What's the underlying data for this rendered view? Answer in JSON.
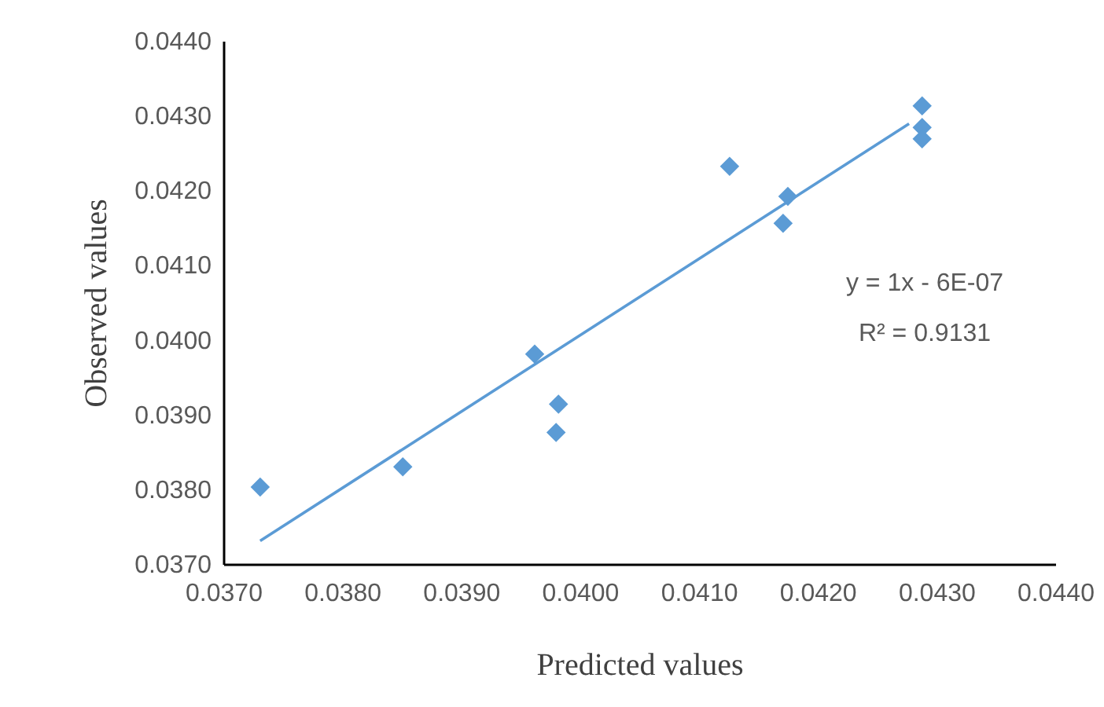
{
  "chart_data": {
    "type": "scatter",
    "xlabel": "Predicted values",
    "ylabel": "Observed values",
    "xlim": [
      0.037,
      0.044
    ],
    "xticks": [
      {
        "value": 0.037,
        "label": "0.0370"
      },
      {
        "value": 0.038,
        "label": "0.0380"
      },
      {
        "value": 0.039,
        "label": "0.0390"
      },
      {
        "value": 0.04,
        "label": "0.0400"
      },
      {
        "value": 0.041,
        "label": "0.0410"
      },
      {
        "value": 0.042,
        "label": "0.0420"
      },
      {
        "value": 0.043,
        "label": "0.0430"
      },
      {
        "value": 0.044,
        "label": "0.0440"
      }
    ],
    "ylim": [
      0.037,
      0.044
    ],
    "yticks": [
      {
        "value": 0.037,
        "label": "0.0370"
      },
      {
        "value": 0.038,
        "label": "0.0380"
      },
      {
        "value": 0.039,
        "label": "0.0390"
      },
      {
        "value": 0.04,
        "label": "0.0400"
      },
      {
        "value": 0.041,
        "label": "0.0410"
      },
      {
        "value": 0.042,
        "label": "0.0420"
      },
      {
        "value": 0.043,
        "label": "0.0430"
      },
      {
        "value": 0.044,
        "label": "0.0440"
      }
    ],
    "grid": false,
    "series": [
      {
        "color": "#5b9bd5",
        "marker": "diamond",
        "x": [
          0.03731,
          0.03851,
          0.03962,
          0.03982,
          0.0398,
          0.04126,
          0.04175,
          0.04171,
          0.04288,
          0.04288,
          0.04288
        ],
        "values": [
          0.03803,
          0.0383,
          0.03981,
          0.03914,
          0.03876,
          0.04232,
          0.04192,
          0.04156,
          0.04313,
          0.04284,
          0.04269
        ]
      },
      {
        "type": "line",
        "color": "#5b9bd5",
        "marker": "none",
        "x": [
          0.03731,
          0.04277
        ],
        "values": [
          0.03731,
          0.04289
        ]
      }
    ],
    "annotations": [
      "y = 1x - 6E-07",
      "R² = 0.9131"
    ]
  }
}
